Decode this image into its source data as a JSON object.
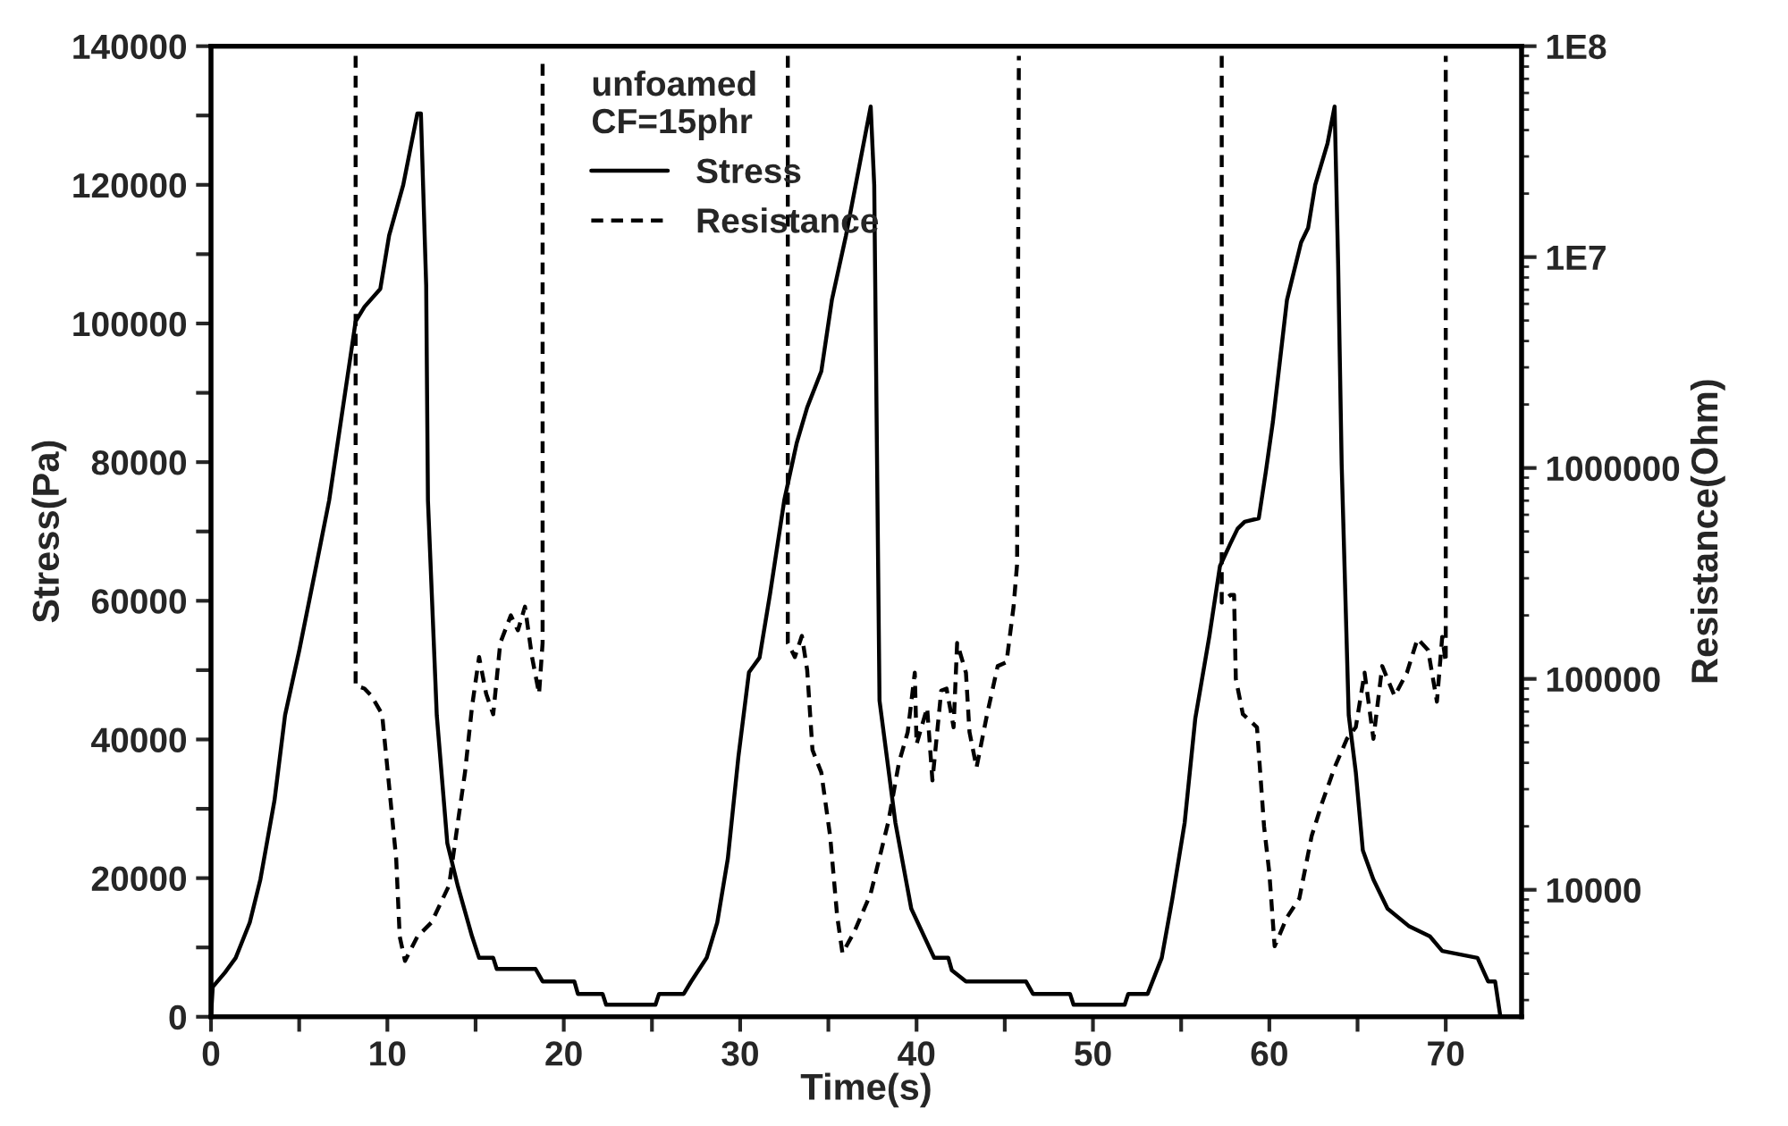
{
  "chart_data": {
    "type": "line",
    "xlabel": "Time(s)",
    "ylabel": "Stress(Pa)",
    "y2label": "Resistance(Ohm)",
    "legend_title": "unfoamed\nCF=15phr",
    "legend": "top",
    "xlim": [
      0,
      74.3
    ],
    "ylim": [
      0,
      140000
    ],
    "y2lim": [
      2500,
      100000000
    ],
    "log": "y2",
    "xticks": [
      0,
      {
        "value": 5,
        "label": null
      },
      10,
      {
        "value": 15,
        "label": null
      },
      20,
      {
        "value": 25,
        "label": null
      },
      30,
      {
        "value": 35,
        "label": null
      },
      40,
      {
        "value": 45,
        "label": null
      },
      50,
      {
        "value": 55,
        "label": null
      },
      60,
      {
        "value": 65,
        "label": null
      },
      70
    ],
    "yticks": [
      0,
      {
        "value": 10000,
        "label": null
      },
      20000,
      {
        "value": 30000,
        "label": null
      },
      40000,
      {
        "value": 50000,
        "label": null
      },
      60000,
      {
        "value": 70000,
        "label": null
      },
      80000,
      {
        "value": 90000,
        "label": null
      },
      100000,
      {
        "value": 110000,
        "label": null
      },
      120000,
      {
        "value": 130000,
        "label": null
      },
      140000
    ],
    "y2ticks": [
      {
        "value": 10000,
        "label": "10000"
      },
      {
        "value": 100000,
        "label": "100000"
      },
      {
        "value": 1000000,
        "label": "1000000"
      },
      {
        "value": 10000000,
        "label": "1E7"
      },
      {
        "value": 100000000,
        "label": "1E8"
      }
    ],
    "series": [
      {
        "name": "Stress",
        "color": "#000000",
        "line_style": "solid",
        "x": [
          0,
          0.1,
          0.8,
          1.4,
          2.2,
          2.8,
          3.6,
          4.2,
          5.0,
          5.9,
          6.7,
          7.3,
          7.9,
          8.2,
          8.7,
          9.6,
          10.1,
          10.9,
          11.7,
          11.9,
          12.2,
          12.3,
          12.8,
          13.4,
          14.0,
          14.8,
          15.2,
          16.0,
          16.2,
          18.4,
          18.8,
          20.6,
          20.8,
          22.2,
          22.4,
          25.2,
          25.4,
          26.8,
          27.2,
          28.1,
          28.7,
          29.3,
          29.9,
          30.5,
          31.1,
          31.7,
          32.5,
          33.2,
          33.8,
          34.6,
          35.2,
          36.0,
          36.7,
          37.4,
          37.6,
          37.9,
          38.8,
          39.7,
          41.0,
          41.8,
          42.0,
          42.8,
          46.2,
          46.6,
          48.7,
          48.9,
          51.8,
          52.0,
          53.1,
          53.9,
          54.5,
          55.2,
          55.8,
          56.6,
          57.2,
          57.8,
          58.2,
          58.6,
          59.4,
          59.8,
          60.2,
          61.0,
          61.8,
          62.2,
          62.6,
          63.3,
          63.7,
          63.9,
          64.1,
          64.5,
          64.9,
          65.3,
          65.9,
          66.7,
          67.9,
          69.1,
          69.8,
          71.8,
          72.4,
          72.8,
          73.1
        ],
        "values": [
          0,
          4300,
          6400,
          8500,
          13600,
          19800,
          31200,
          43500,
          52800,
          64200,
          74500,
          84800,
          95100,
          100300,
          102400,
          105000,
          112700,
          120000,
          130300,
          130300,
          105500,
          74500,
          43500,
          25000,
          18800,
          11600,
          8500,
          8500,
          6900,
          6900,
          5100,
          5100,
          3300,
          3300,
          1750,
          1750,
          3300,
          3300,
          5000,
          8500,
          13600,
          22800,
          37500,
          49700,
          51800,
          61100,
          74500,
          82700,
          87900,
          93100,
          103400,
          112700,
          122000,
          131300,
          120000,
          45600,
          28000,
          15600,
          8500,
          8500,
          6700,
          5100,
          5100,
          3300,
          3300,
          1750,
          1750,
          3300,
          3300,
          8500,
          17000,
          28000,
          43000,
          54900,
          65000,
          68300,
          70400,
          71400,
          71900,
          78600,
          85800,
          103400,
          111700,
          113800,
          120000,
          126000,
          131300,
          108600,
          79700,
          43500,
          35300,
          24000,
          19800,
          15600,
          13100,
          11600,
          9500,
          8500,
          5100,
          5100,
          0
        ]
      },
      {
        "name": "Resistance",
        "color": "#000000",
        "line_style": "dashed",
        "axis": "y2",
        "x": [
          8.2,
          8.2,
          8.7,
          9.1,
          9.7,
          10.1,
          10.5,
          10.7,
          11.0,
          11.7,
          12.5,
          13.5,
          14.0,
          14.4,
          14.8,
          15.2,
          15.6,
          16.0,
          16.4,
          17.0,
          17.4,
          17.8,
          18.2,
          18.6,
          18.8,
          18.8,
          25.0,
          32.7,
          32.7,
          33.1,
          33.5,
          33.8,
          34.1,
          34.6,
          35.1,
          35.5,
          35.8,
          36.5,
          37.4,
          38.4,
          39.0,
          39.5,
          39.9,
          40.0,
          40.6,
          40.9,
          41.4,
          41.7,
          42.1,
          42.3,
          42.8,
          43.0,
          43.4,
          44.0,
          44.6,
          45.1,
          45.5,
          45.7,
          45.8,
          51.0,
          57.3,
          57.3,
          57.8,
          58.0,
          58.1,
          58.5,
          59.3,
          59.7,
          60.0,
          60.3,
          61.0,
          61.7,
          62.4,
          63.0,
          63.7,
          64.4,
          64.9,
          65.4,
          65.9,
          66.4,
          67.1,
          67.8,
          68.4,
          69.0,
          69.5,
          69.8,
          70.0,
          70.0
        ],
        "values": [
          90000000,
          93000,
          90000,
          83000,
          68000,
          31000,
          14000,
          6000,
          4600,
          6000,
          7000,
          10500,
          21000,
          36000,
          74000,
          127000,
          85000,
          68000,
          148000,
          200000,
          170000,
          220000,
          127000,
          85000,
          148000,
          90000000,
          null,
          90000000,
          148000,
          127000,
          160000,
          110000,
          46000,
          36000,
          18000,
          7500,
          5000,
          6400,
          9600,
          21000,
          40000,
          56000,
          107000,
          49000,
          73000,
          33000,
          88000,
          90000,
          59000,
          148000,
          107000,
          56000,
          38000,
          68000,
          115000,
          120000,
          220000,
          350000,
          90000000,
          null,
          90000000,
          230000,
          250000,
          250000,
          100000,
          68000,
          59000,
          20000,
          12000,
          5400,
          7400,
          9100,
          18000,
          26000,
          38000,
          52000,
          59000,
          107000,
          52000,
          115000,
          83000,
          107000,
          155000,
          137000,
          78000,
          158000,
          120000,
          90000000
        ]
      }
    ]
  }
}
